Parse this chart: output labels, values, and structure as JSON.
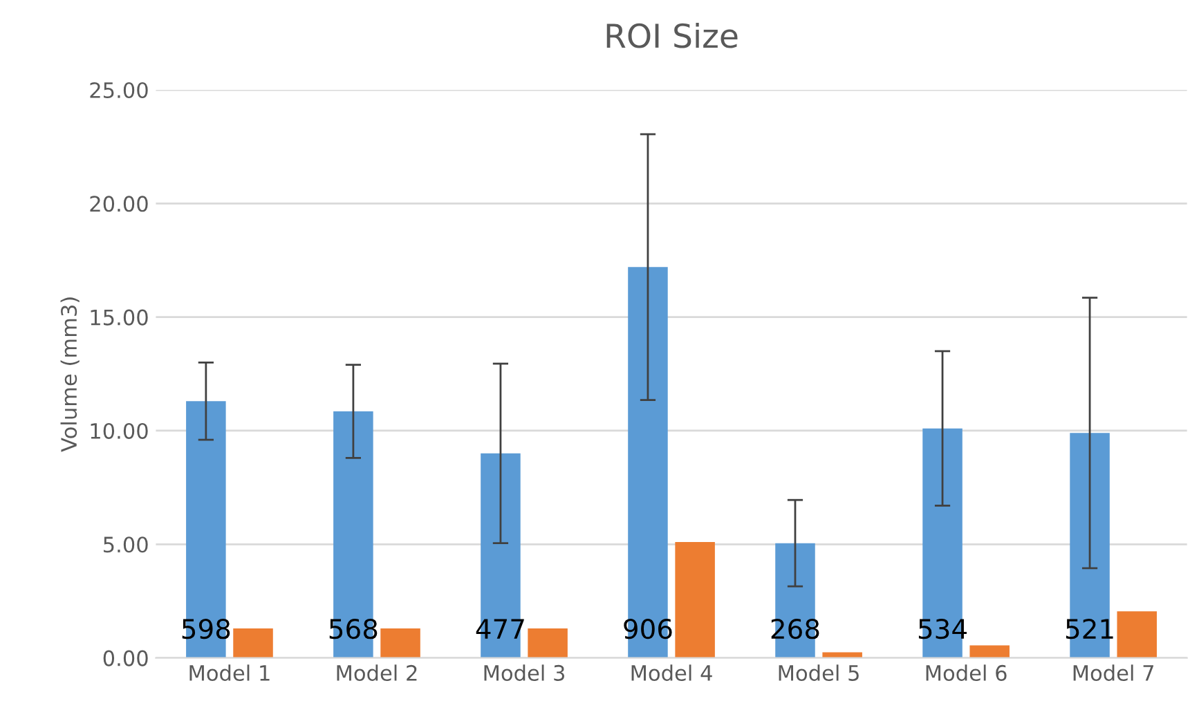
{
  "chart_data": {
    "type": "bar",
    "title": "ROI Size",
    "ylabel": "Volume (mm3)",
    "categories": [
      "Model 1",
      "Model 2",
      "Model 3",
      "Model 4",
      "Model 5",
      "Model 6",
      "Model 7"
    ],
    "series": [
      {
        "color": "#5b9bd5",
        "values": [
          11.3,
          10.85,
          9.0,
          17.2,
          5.05,
          10.1,
          9.9
        ],
        "errors": [
          1.7,
          2.05,
          3.95,
          5.85,
          1.9,
          3.4,
          5.95
        ]
      },
      {
        "color": "#ed7d31",
        "values": [
          1.3,
          1.3,
          1.3,
          5.1,
          0.25,
          0.55,
          2.05
        ]
      }
    ],
    "ylim": [
      0,
      25
    ],
    "yticks": [
      {
        "value": 0,
        "label": "0.00"
      },
      {
        "value": 5,
        "label": "5.00"
      },
      {
        "value": 10,
        "label": "10.00"
      },
      {
        "value": 15,
        "label": "15.00"
      },
      {
        "value": 20,
        "label": "20.00"
      },
      {
        "value": 25,
        "label": "25.00"
      }
    ],
    "annotations": [
      "598",
      "568",
      "477",
      "906",
      "268",
      "534",
      "521"
    ],
    "grid": "y",
    "legend": false
  }
}
